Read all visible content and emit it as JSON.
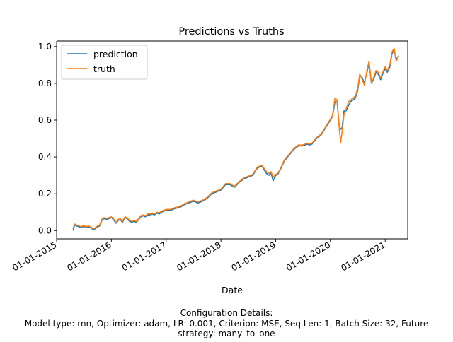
{
  "chart_data": {
    "type": "line",
    "title": "Predictions vs Truths",
    "xlabel": "Date",
    "ylabel": "",
    "x_ticks": [
      "01-01-2015",
      "01-01-2016",
      "01-01-2017",
      "01-01-2018",
      "01-01-2019",
      "01-01-2020",
      "01-01-2021"
    ],
    "y_ticks": [
      "0.0",
      "0.2",
      "0.4",
      "0.6",
      "0.8",
      "1.0"
    ],
    "xlim": [
      "2015-01-01",
      "2021-05-31"
    ],
    "ylim": [
      -0.045,
      1.03
    ],
    "legend_position": "upper-left",
    "grid": false,
    "x": [
      "2015-04-20",
      "2015-05-01",
      "2015-05-15",
      "2015-06-01",
      "2015-06-15",
      "2015-07-01",
      "2015-07-15",
      "2015-08-01",
      "2015-08-15",
      "2015-09-01",
      "2015-09-15",
      "2015-10-01",
      "2015-10-15",
      "2015-11-01",
      "2015-11-15",
      "2015-12-01",
      "2015-12-15",
      "2016-01-01",
      "2016-01-15",
      "2016-02-01",
      "2016-02-15",
      "2016-03-01",
      "2016-03-15",
      "2016-04-01",
      "2016-04-15",
      "2016-05-01",
      "2016-05-15",
      "2016-06-01",
      "2016-06-15",
      "2016-07-01",
      "2016-07-15",
      "2016-08-01",
      "2016-08-15",
      "2016-09-01",
      "2016-09-15",
      "2016-10-01",
      "2016-10-15",
      "2016-11-01",
      "2016-11-15",
      "2016-12-01",
      "2016-12-15",
      "2017-01-01",
      "2017-02-01",
      "2017-03-01",
      "2017-04-01",
      "2017-05-01",
      "2017-06-01",
      "2017-07-01",
      "2017-08-01",
      "2017-09-01",
      "2017-10-01",
      "2017-11-01",
      "2017-12-01",
      "2018-01-01",
      "2018-02-01",
      "2018-03-01",
      "2018-04-01",
      "2018-05-01",
      "2018-06-01",
      "2018-07-01",
      "2018-08-01",
      "2018-09-01",
      "2018-10-01",
      "2018-11-01",
      "2018-11-20",
      "2018-12-01",
      "2018-12-15",
      "2019-01-01",
      "2019-01-15",
      "2019-02-01",
      "2019-03-01",
      "2019-04-01",
      "2019-05-01",
      "2019-06-01",
      "2019-07-01",
      "2019-08-01",
      "2019-08-15",
      "2019-09-01",
      "2019-10-01",
      "2019-11-01",
      "2019-12-01",
      "2020-01-01",
      "2020-01-15",
      "2020-02-01",
      "2020-02-15",
      "2020-03-01",
      "2020-03-10",
      "2020-03-20",
      "2020-04-01",
      "2020-04-15",
      "2020-05-01",
      "2020-05-15",
      "2020-06-01",
      "2020-06-15",
      "2020-07-01",
      "2020-07-15",
      "2020-08-01",
      "2020-08-15",
      "2020-09-01",
      "2020-09-15",
      "2020-10-01",
      "2020-10-15",
      "2020-11-01",
      "2020-11-15",
      "2020-12-01",
      "2020-12-15",
      "2021-01-01",
      "2021-01-15",
      "2021-02-01",
      "2021-02-15",
      "2021-03-01",
      "2021-03-15",
      "2021-04-01"
    ],
    "series": [
      {
        "name": "prediction",
        "color": "#1f77b4",
        "values": [
          0.0,
          0.03,
          0.025,
          0.02,
          0.015,
          0.025,
          0.015,
          0.02,
          0.018,
          0.005,
          0.01,
          0.02,
          0.025,
          0.06,
          0.065,
          0.06,
          0.065,
          0.07,
          0.06,
          0.04,
          0.055,
          0.06,
          0.045,
          0.07,
          0.065,
          0.05,
          0.045,
          0.05,
          0.045,
          0.06,
          0.075,
          0.08,
          0.075,
          0.085,
          0.085,
          0.09,
          0.085,
          0.095,
          0.09,
          0.1,
          0.105,
          0.11,
          0.11,
          0.12,
          0.125,
          0.14,
          0.15,
          0.16,
          0.15,
          0.16,
          0.175,
          0.2,
          0.21,
          0.22,
          0.25,
          0.25,
          0.235,
          0.26,
          0.28,
          0.29,
          0.3,
          0.34,
          0.35,
          0.31,
          0.3,
          0.315,
          0.27,
          0.3,
          0.305,
          0.33,
          0.38,
          0.41,
          0.44,
          0.46,
          0.46,
          0.47,
          0.465,
          0.47,
          0.5,
          0.52,
          0.56,
          0.6,
          0.62,
          0.7,
          0.7,
          0.56,
          0.55,
          0.56,
          0.65,
          0.65,
          0.68,
          0.7,
          0.71,
          0.72,
          0.76,
          0.84,
          0.83,
          0.8,
          0.86,
          0.91,
          0.8,
          0.82,
          0.86,
          0.85,
          0.82,
          0.85,
          0.88,
          0.86,
          0.89,
          0.96,
          0.98,
          0.93,
          0.95
        ]
      },
      {
        "name": "truth",
        "color": "#ff7f0e",
        "values": [
          0.01,
          0.035,
          0.03,
          0.025,
          0.02,
          0.03,
          0.02,
          0.025,
          0.02,
          0.01,
          0.015,
          0.025,
          0.03,
          0.065,
          0.07,
          0.065,
          0.07,
          0.075,
          0.065,
          0.045,
          0.06,
          0.065,
          0.05,
          0.075,
          0.07,
          0.055,
          0.05,
          0.055,
          0.05,
          0.065,
          0.08,
          0.085,
          0.08,
          0.09,
          0.09,
          0.095,
          0.09,
          0.1,
          0.095,
          0.105,
          0.11,
          0.115,
          0.115,
          0.125,
          0.13,
          0.145,
          0.155,
          0.165,
          0.155,
          0.165,
          0.18,
          0.205,
          0.215,
          0.225,
          0.255,
          0.255,
          0.24,
          0.265,
          0.285,
          0.295,
          0.305,
          0.345,
          0.355,
          0.32,
          0.31,
          0.32,
          0.29,
          0.305,
          0.31,
          0.335,
          0.385,
          0.415,
          0.445,
          0.465,
          0.465,
          0.475,
          0.47,
          0.475,
          0.505,
          0.525,
          0.565,
          0.605,
          0.625,
          0.72,
          0.71,
          0.55,
          0.48,
          0.54,
          0.63,
          0.66,
          0.7,
          0.71,
          0.72,
          0.73,
          0.77,
          0.85,
          0.82,
          0.79,
          0.87,
          0.92,
          0.8,
          0.83,
          0.87,
          0.86,
          0.83,
          0.86,
          0.89,
          0.87,
          0.9,
          0.97,
          0.99,
          0.92,
          0.95
        ]
      }
    ]
  },
  "caption": {
    "line1": "Configuration Details:",
    "line2": "Model type: rnn, Optimizer: adam, LR: 0.001, Criterion: MSE, Seq Len: 1, Batch Size: 32, Future",
    "line3": "strategy: many_to_one"
  }
}
